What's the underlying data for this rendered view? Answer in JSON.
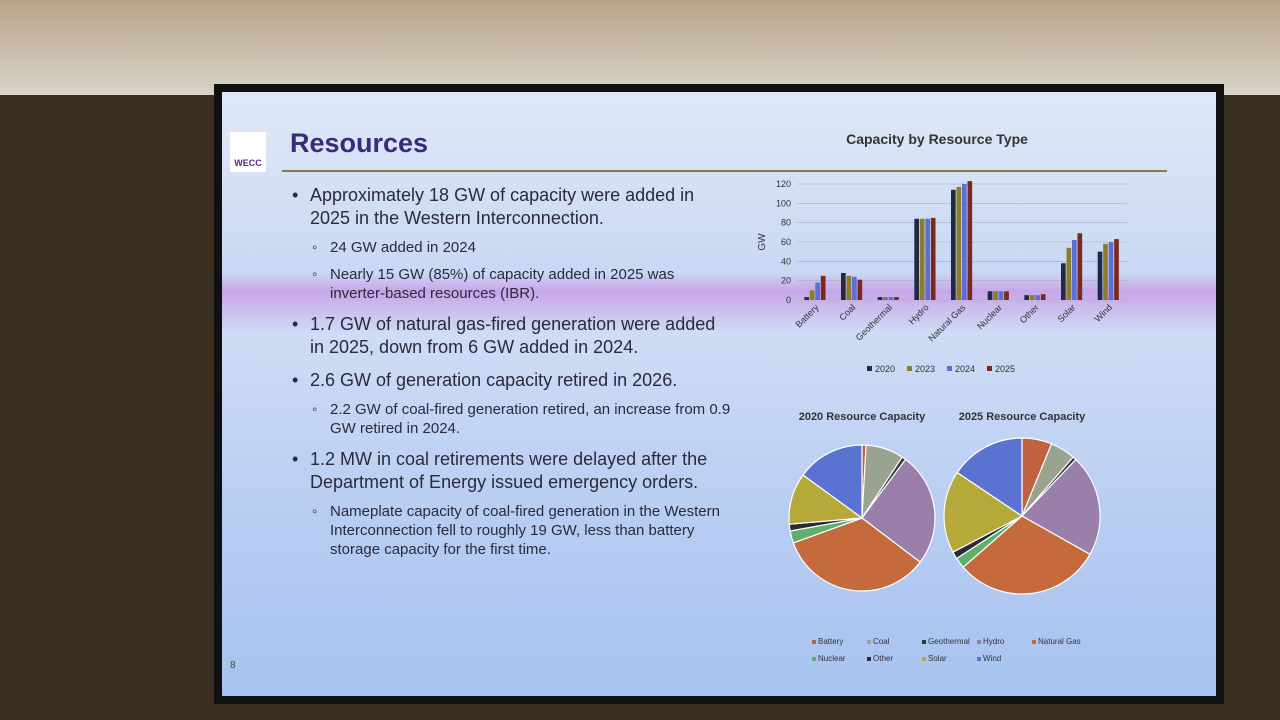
{
  "slide": {
    "logo": "WECC",
    "title": "Resources",
    "page_number": 8,
    "bullets": [
      {
        "text": "Approximately 18 GW of capacity were added in 2025 in the Western Interconnection.",
        "sub": [
          "24 GW added in 2024",
          "Nearly 15 GW (85%) of capacity added in 2025 was inverter-based resources (IBR)."
        ]
      },
      {
        "text": "1.7 GW of natural gas-fired generation were added in 2025, down from 6 GW added in 2024.",
        "sub": []
      },
      {
        "text": "2.6 GW of generation capacity retired in 2026.",
        "sub": [
          "2.2 GW of coal-fired generation retired, an increase from 0.9 GW retired in 2024."
        ]
      },
      {
        "text": "1.2 MW in coal retirements were delayed after the Department of Energy issued emergency orders.",
        "sub": [
          "Nameplate capacity of coal-fired generation in the Western Interconnection fell to roughly 19 GW, less than battery storage capacity for the first time."
        ]
      }
    ]
  },
  "chart_data": [
    {
      "type": "bar",
      "title": "Capacity by Resource Type",
      "y_label": "GW",
      "categories": [
        "Battery",
        "Coal",
        "Geothermal",
        "Hydro",
        "Natural Gas",
        "Nuclear",
        "Other",
        "Solar",
        "Wind"
      ],
      "series": [
        {
          "name": "2020",
          "color": "#1f2a44",
          "values": [
            3,
            28,
            3,
            84,
            114,
            9,
            5,
            38,
            50
          ]
        },
        {
          "name": "2023",
          "color": "#8b7d2a",
          "values": [
            10,
            25,
            3,
            84,
            117,
            9,
            5,
            54,
            58
          ]
        },
        {
          "name": "2024",
          "color": "#5b6fd6",
          "values": [
            18,
            24,
            3,
            84,
            120,
            9,
            5,
            62,
            60
          ]
        },
        {
          "name": "2025",
          "color": "#7a2a1a",
          "values": [
            25,
            21,
            3,
            85,
            123,
            9,
            6,
            69,
            63
          ]
        }
      ],
      "ylim": [
        0,
        120
      ],
      "yticks": [
        0,
        20,
        40,
        60,
        80,
        100,
        120
      ],
      "grid": true
    },
    {
      "type": "pie",
      "categories": [
        "Battery",
        "Coal",
        "Geothermal",
        "Hydro",
        "Natural Gas",
        "Nuclear",
        "Other",
        "Solar",
        "Wind"
      ],
      "colors": [
        "#c0623f",
        "#9aa38f",
        "#2f3b3a",
        "#9a7fa8",
        "#c56a3c",
        "#5fae6a",
        "#2a2a3a",
        "#b5a93a",
        "#5a73d0"
      ],
      "series": [
        {
          "name": "2020 Resource Capacity",
          "values": [
            3,
            28,
            3,
            84,
            114,
            9,
            5,
            38,
            50
          ]
        },
        {
          "name": "2025 Resource Capacity",
          "values": [
            25,
            21,
            3,
            85,
            123,
            9,
            6,
            69,
            63
          ]
        }
      ]
    }
  ]
}
